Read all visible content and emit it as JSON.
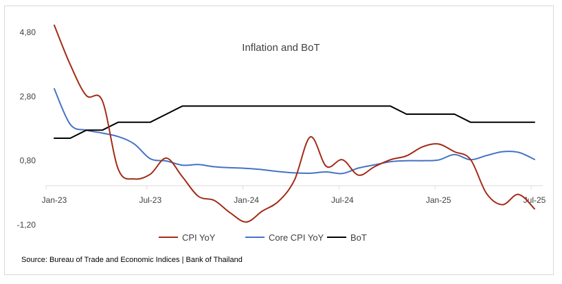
{
  "chart_data": {
    "type": "line",
    "title": "Inflation and BoT",
    "x": [
      "Jan-23",
      "Feb-23",
      "Mar-23",
      "Apr-23",
      "May-23",
      "Jun-23",
      "Jul-23",
      "Aug-23",
      "Sep-23",
      "Oct-23",
      "Nov-23",
      "Dec-23",
      "Jan-24",
      "Feb-24",
      "Mar-24",
      "Apr-24",
      "May-24",
      "Jun-24",
      "Jul-24",
      "Aug-24",
      "Sep-24",
      "Oct-24",
      "Nov-24",
      "Dec-24",
      "Jan-25",
      "Feb-25",
      "Mar-25",
      "Apr-25",
      "May-25",
      "Jun-25",
      "Jul-25"
    ],
    "x_tick_labels": [
      "Jan-23",
      "Jul-23",
      "Jan-24",
      "Jul-24",
      "Jan-25",
      "Jul-25"
    ],
    "y_tick_labels": [
      "4,80",
      "2,80",
      "0,80",
      "-1,20"
    ],
    "y_ticks": [
      4.8,
      2.8,
      0.8,
      -1.2
    ],
    "ylim": [
      -1.2,
      4.8
    ],
    "xlabel": "",
    "ylabel": "",
    "grid": false,
    "legend_position": "bottom",
    "series": [
      {
        "name": "CPI YoY",
        "color": "#a32a16",
        "values": [
          5.02,
          3.79,
          2.83,
          2.67,
          0.53,
          0.23,
          0.38,
          0.88,
          0.3,
          -0.31,
          -0.44,
          -0.83,
          -1.11,
          -0.77,
          -0.47,
          0.19,
          1.54,
          0.62,
          0.83,
          0.35,
          0.61,
          0.83,
          0.95,
          1.23,
          1.32,
          1.08,
          0.84,
          -0.22,
          -0.57,
          -0.25,
          -0.7
        ]
      },
      {
        "name": "Core CPI YoY",
        "color": "#4472c4",
        "values": [
          3.04,
          1.93,
          1.75,
          1.66,
          1.55,
          1.32,
          0.86,
          0.79,
          0.66,
          0.68,
          0.61,
          0.58,
          0.56,
          0.52,
          0.46,
          0.42,
          0.41,
          0.45,
          0.4,
          0.57,
          0.67,
          0.77,
          0.8,
          0.8,
          0.82,
          0.99,
          0.83,
          0.96,
          1.08,
          1.06,
          0.84
        ]
      },
      {
        "name": "BoT",
        "color": "#000000",
        "values": [
          1.5,
          1.5,
          1.75,
          1.75,
          2.0,
          2.0,
          2.0,
          2.25,
          2.5,
          2.5,
          2.5,
          2.5,
          2.5,
          2.5,
          2.5,
          2.5,
          2.5,
          2.5,
          2.5,
          2.5,
          2.5,
          2.5,
          2.25,
          2.25,
          2.25,
          2.25,
          2.0,
          2.0,
          2.0,
          2.0,
          2.0
        ]
      }
    ],
    "source": "Source: Bureau of Trade and Economic Indices | Bank of Thailand"
  }
}
